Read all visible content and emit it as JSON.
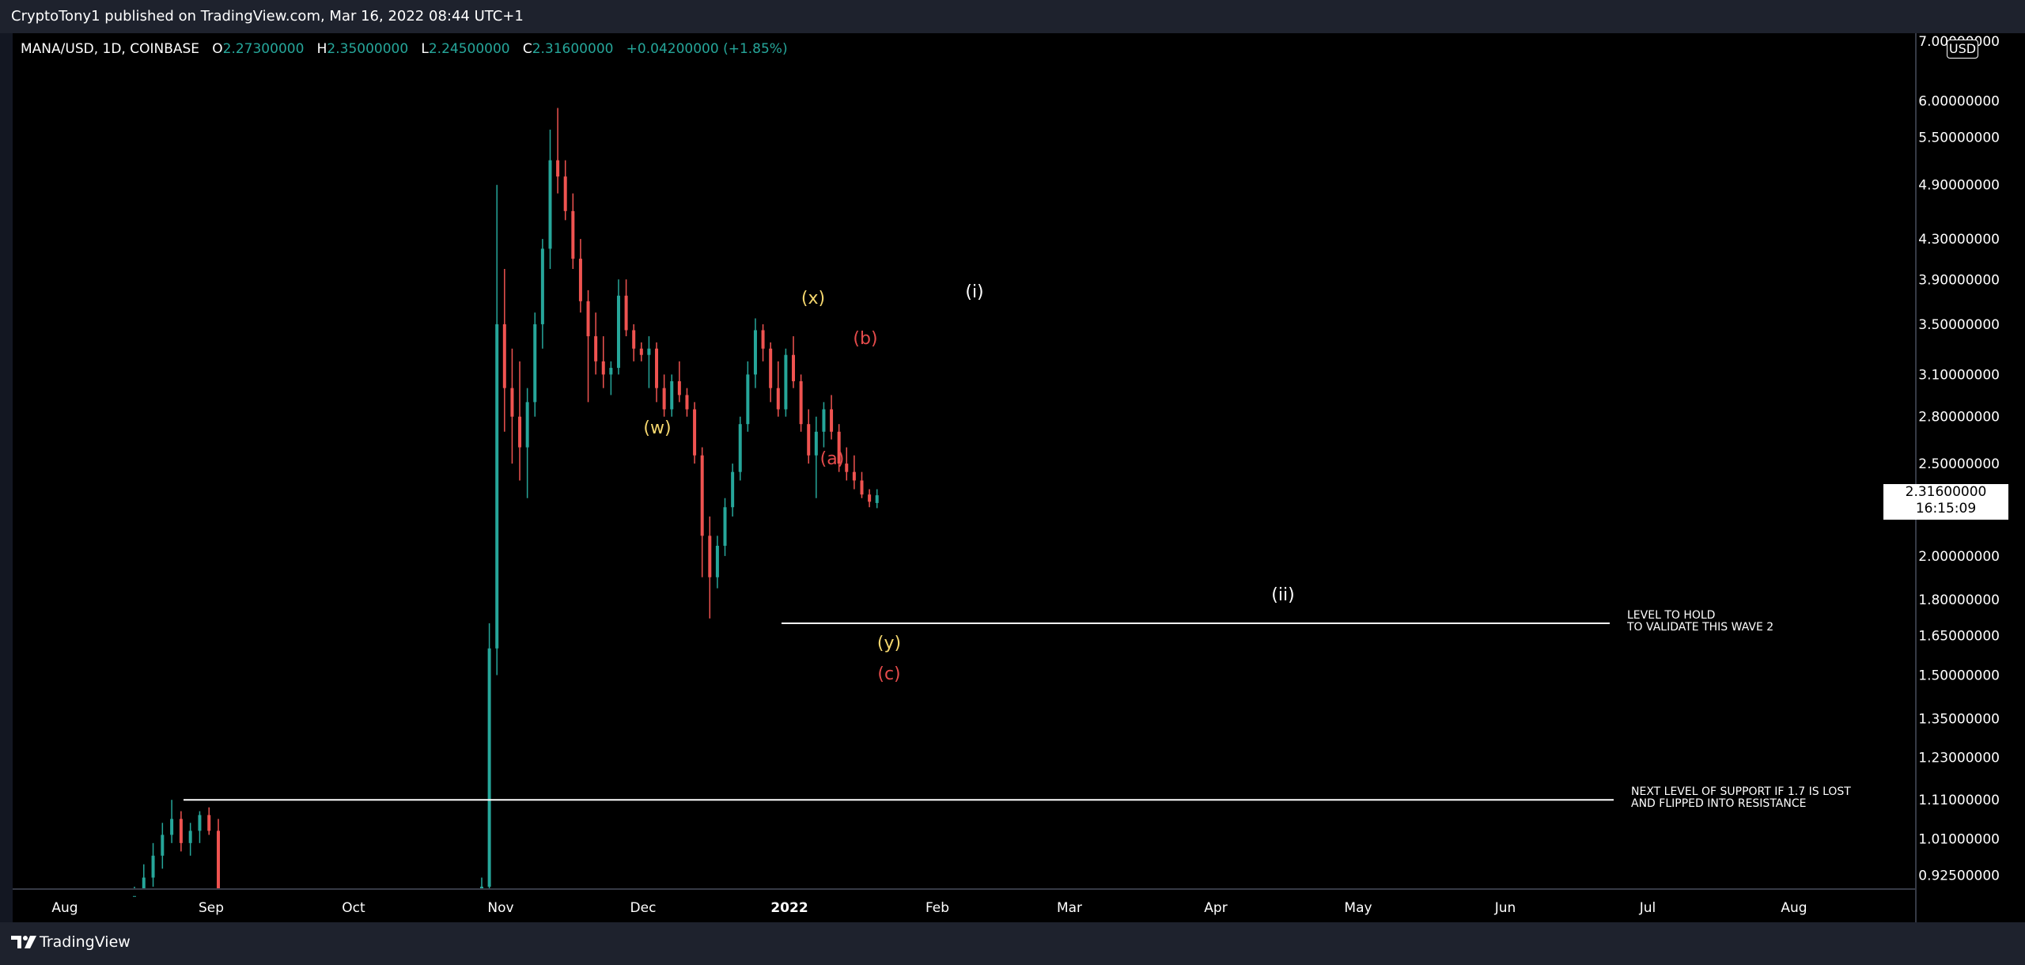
{
  "header": {
    "published": "CryptoTony1 published on TradingView.com, Mar 16, 2022 08:44 UTC+1"
  },
  "symbol": {
    "name": "MANA/USD, 1D, COINBASE",
    "open_label": "O",
    "open": "2.27300000",
    "high_label": "H",
    "high": "2.35000000",
    "low_label": "L",
    "low": "2.24500000",
    "close_label": "C",
    "close": "2.31600000",
    "change": "+0.04200000 (+1.85%)"
  },
  "price_tag": {
    "price": "2.31600000",
    "countdown": "16:15:09"
  },
  "currency": "USD",
  "footer": {
    "brand": "TradingView"
  },
  "colors": {
    "up": "#26a69a",
    "down": "#ef5350",
    "wave_yellow": "#f5d76e",
    "wave_red": "#e54b4b",
    "wave_white": "#ffffff",
    "line": "#ffffff"
  },
  "chart_data": {
    "type": "candlestick",
    "scale": "log",
    "ylim": [
      0.9,
      7.0
    ],
    "y_ticks": [
      "7.00000000",
      "6.00000000",
      "5.50000000",
      "4.90000000",
      "4.30000000",
      "3.90000000",
      "3.50000000",
      "3.10000000",
      "2.80000000",
      "2.50000000",
      "2.00000000",
      "1.80000000",
      "1.65000000",
      "1.50000000",
      "1.35000000",
      "1.23000000",
      "1.11000000",
      "1.01000000",
      "0.92500000"
    ],
    "x_ticks": [
      "Aug",
      "Sep",
      "Oct",
      "Nov",
      "Dec",
      "2022",
      "Feb",
      "Mar",
      "Apr",
      "May",
      "Jun",
      "Jul",
      "Aug"
    ],
    "series": [
      {
        "values": [
          [
            0.85,
            0.9,
            0.84,
            0.88
          ],
          [
            0.88,
            0.95,
            0.86,
            0.92
          ],
          [
            0.92,
            1.0,
            0.9,
            0.97
          ],
          [
            0.97,
            1.05,
            0.94,
            1.02
          ],
          [
            1.02,
            1.11,
            1.0,
            1.06
          ],
          [
            1.06,
            1.08,
            0.98,
            1.0
          ],
          [
            1.0,
            1.05,
            0.97,
            1.03
          ],
          [
            1.03,
            1.08,
            1.0,
            1.07
          ],
          [
            1.07,
            1.09,
            1.02,
            1.03
          ],
          [
            1.03,
            1.06,
            0.85,
            0.88
          ]
        ]
      },
      {
        "values": [
          [
            0.7,
            0.92,
            0.68,
            0.9
          ],
          [
            0.9,
            1.7,
            0.88,
            1.6
          ],
          [
            1.6,
            4.9,
            1.5,
            3.5
          ],
          [
            3.5,
            4.0,
            2.7,
            3.0
          ],
          [
            3.0,
            3.3,
            2.5,
            2.8
          ],
          [
            2.8,
            3.2,
            2.4,
            2.6
          ],
          [
            2.6,
            3.0,
            2.3,
            2.9
          ],
          [
            2.9,
            3.6,
            2.8,
            3.5
          ],
          [
            3.5,
            4.3,
            3.3,
            4.2
          ],
          [
            4.2,
            5.6,
            4.0,
            5.2
          ],
          [
            5.2,
            5.9,
            4.8,
            5.0
          ],
          [
            5.0,
            5.2,
            4.5,
            4.6
          ],
          [
            4.6,
            4.8,
            4.0,
            4.1
          ],
          [
            4.1,
            4.3,
            3.6,
            3.7
          ],
          [
            3.7,
            3.8,
            2.9,
            3.4
          ],
          [
            3.4,
            3.6,
            3.1,
            3.2
          ],
          [
            3.2,
            3.4,
            3.0,
            3.1
          ],
          [
            3.1,
            3.2,
            2.95,
            3.15
          ],
          [
            3.15,
            3.9,
            3.1,
            3.75
          ],
          [
            3.75,
            3.9,
            3.4,
            3.45
          ],
          [
            3.45,
            3.5,
            3.2,
            3.3
          ],
          [
            3.3,
            3.35,
            3.2,
            3.25
          ],
          [
            3.25,
            3.4,
            3.0,
            3.3
          ],
          [
            3.3,
            3.35,
            2.9,
            3.0
          ],
          [
            3.0,
            3.1,
            2.8,
            2.85
          ],
          [
            2.85,
            3.1,
            2.8,
            3.05
          ],
          [
            3.05,
            3.2,
            2.9,
            2.95
          ],
          [
            2.95,
            3.0,
            2.8,
            2.85
          ],
          [
            2.85,
            2.9,
            2.5,
            2.55
          ],
          [
            2.55,
            2.6,
            1.9,
            2.1
          ],
          [
            2.1,
            2.2,
            1.72,
            1.9
          ],
          [
            1.9,
            2.1,
            1.85,
            2.05
          ],
          [
            2.05,
            2.3,
            2.0,
            2.25
          ],
          [
            2.25,
            2.5,
            2.2,
            2.45
          ],
          [
            2.45,
            2.8,
            2.4,
            2.75
          ],
          [
            2.75,
            3.2,
            2.7,
            3.1
          ],
          [
            3.1,
            3.55,
            3.0,
            3.45
          ],
          [
            3.45,
            3.5,
            3.2,
            3.3
          ],
          [
            3.3,
            3.35,
            2.9,
            3.0
          ],
          [
            3.0,
            3.2,
            2.8,
            2.85
          ],
          [
            2.85,
            3.3,
            2.8,
            3.25
          ],
          [
            3.25,
            3.4,
            3.0,
            3.05
          ],
          [
            3.05,
            3.1,
            2.7,
            2.75
          ],
          [
            2.75,
            2.85,
            2.5,
            2.55
          ],
          [
            2.55,
            2.8,
            2.3,
            2.7
          ],
          [
            2.7,
            2.9,
            2.6,
            2.85
          ],
          [
            2.85,
            2.95,
            2.65,
            2.7
          ],
          [
            2.7,
            2.75,
            2.45,
            2.5
          ],
          [
            2.5,
            2.6,
            2.4,
            2.45
          ],
          [
            2.45,
            2.55,
            2.35,
            2.4
          ],
          [
            2.4,
            2.45,
            2.3,
            2.32
          ],
          [
            2.32,
            2.35,
            2.25,
            2.28
          ],
          [
            2.273,
            2.35,
            2.245,
            2.316
          ]
        ]
      }
    ],
    "levels": [
      {
        "price": 1.7,
        "label_lines": [
          "LEVEL TO HOLD",
          "TO VALIDATE THIS WAVE 2"
        ]
      },
      {
        "price": 1.11,
        "label_lines": [
          "NEXT LEVEL OF SUPPORT IF 1.7 IS LOST",
          "AND FLIPPED INTO RESISTANCE"
        ]
      }
    ],
    "annotations": [
      {
        "text": "(w)",
        "color": "yellow"
      },
      {
        "text": "(x)",
        "color": "yellow"
      },
      {
        "text": "(b)",
        "color": "red"
      },
      {
        "text": "(a)",
        "color": "red"
      },
      {
        "text": "(y)",
        "color": "yellow"
      },
      {
        "text": "(c)",
        "color": "red"
      },
      {
        "text": "(i)",
        "color": "white"
      },
      {
        "text": "(ii)",
        "color": "white"
      }
    ]
  }
}
